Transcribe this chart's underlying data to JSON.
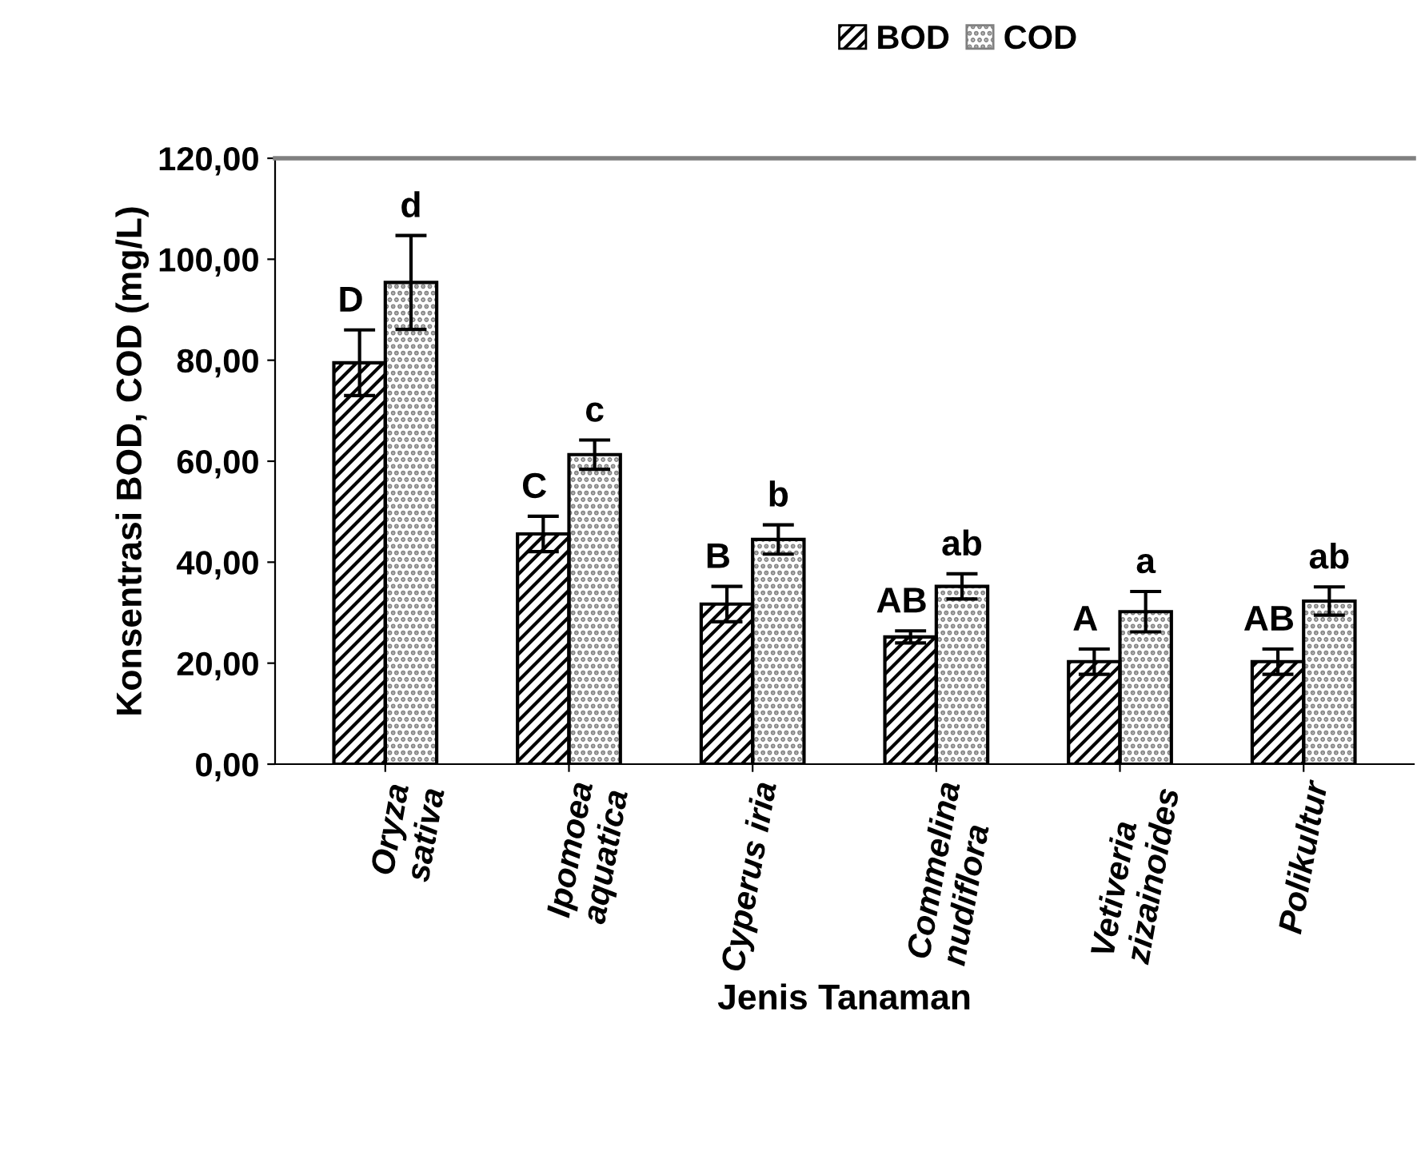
{
  "chart_data": {
    "type": "bar",
    "xlabel": "Jenis Tanaman",
    "ylabel": "Konsentrasi BOD, COD (mg/L)",
    "categories": [
      "Oryza\nsativa",
      "Ipomoea\naquatica",
      "Cyperus iria",
      "Commelina\nnudiflora",
      "Vetiveria\nzizainoides",
      "Polikultur"
    ],
    "series": [
      {
        "name": "BOD",
        "color": "#000000",
        "values": [
          79.5,
          45.6,
          31.7,
          25.2,
          20.3,
          20.3
        ],
        "errors": [
          6.5,
          3.5,
          3.5,
          1.2,
          2.5,
          2.5
        ]
      },
      {
        "name": "COD",
        "color": "#808080",
        "values": [
          95.4,
          61.3,
          44.5,
          35.2,
          30.2,
          32.3
        ],
        "errors": [
          9.3,
          2.9,
          2.9,
          2.5,
          4.0,
          2.8
        ]
      }
    ],
    "ylim": [
      0,
      120
    ],
    "yticks": [
      {
        "value": 0,
        "label": "0,00"
      },
      {
        "value": 20,
        "label": "20,00"
      },
      {
        "value": 40,
        "label": "40,00"
      },
      {
        "value": 60,
        "label": "60,00"
      },
      {
        "value": 80,
        "label": "80,00"
      },
      {
        "value": 100,
        "label": "100,00"
      },
      {
        "value": 120,
        "label": "120,00"
      }
    ],
    "annotations": [
      "D",
      "d",
      "C",
      "c",
      "B",
      "b",
      "AB",
      "ab",
      "A",
      "a",
      "AB",
      "ab"
    ],
    "legend": "top",
    "grid": false
  }
}
